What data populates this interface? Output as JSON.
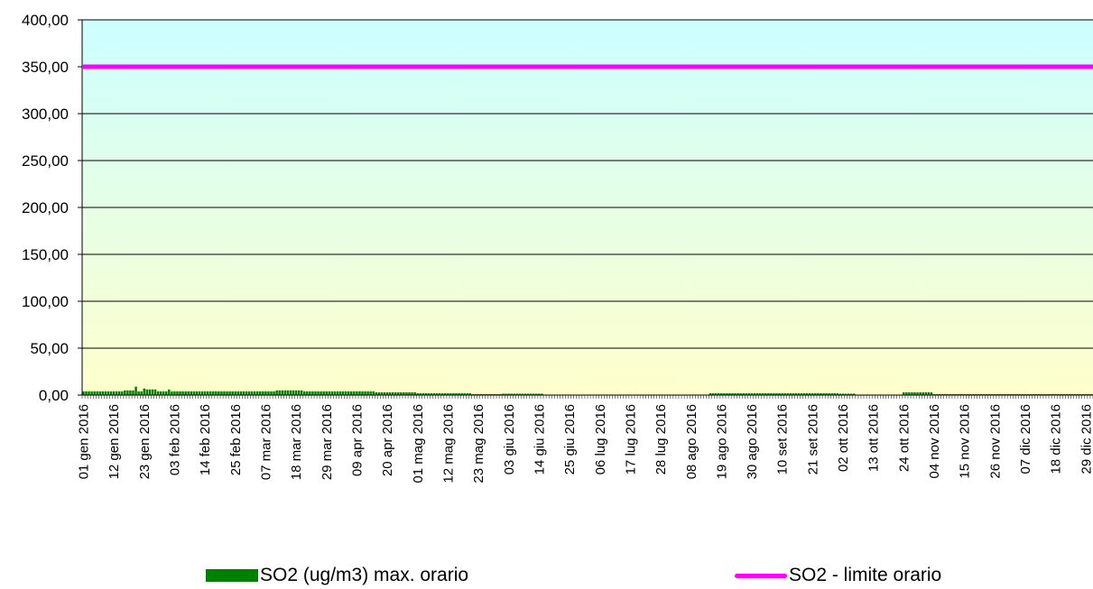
{
  "chart_data": {
    "type": "bar",
    "y_ticks": [
      "0,00",
      "50,00",
      "100,00",
      "150,00",
      "200,00",
      "250,00",
      "300,00",
      "350,00",
      "400,00"
    ],
    "ylim": [
      0,
      400
    ],
    "x_tick_labels": [
      "01 gen 2016",
      "12 gen 2016",
      "23 gen 2016",
      "03 feb 2016",
      "14 feb 2016",
      "25 feb 2016",
      "07 mar 2016",
      "18 mar 2016",
      "29 mar 2016",
      "09 apr 2016",
      "20 apr 2016",
      "01 mag 2016",
      "12 mag 2016",
      "23 mag 2016",
      "03 giu 2016",
      "14 giu 2016",
      "25 giu 2016",
      "06 lug 2016",
      "17 lug 2016",
      "28 lug 2016",
      "08 ago 2016",
      "19 ago 2016",
      "30 ago 2016",
      "10 set 2016",
      "21 set 2016",
      "02 ott 2016",
      "13 ott 2016",
      "24 ott 2016",
      "04 nov 2016",
      "15 nov 2016",
      "26 nov 2016",
      "07 dic 2016",
      "18 dic 2016",
      "29 dic 2016"
    ],
    "series": [
      {
        "name": "SO2 (ug/m3) max. orario",
        "kind": "bar",
        "color": "#008000",
        "segments": [
          {
            "from": "01 gen 2016",
            "to": "15 gen 2016",
            "value": 4
          },
          {
            "from": "16 gen 2016",
            "to": "19 gen 2016",
            "value": 5
          },
          {
            "from": "20 gen 2016",
            "to": "20 gen 2016",
            "value": 9
          },
          {
            "from": "21 gen 2016",
            "to": "22 gen 2016",
            "value": 4
          },
          {
            "from": "23 gen 2016",
            "to": "23 gen 2016",
            "value": 7
          },
          {
            "from": "24 gen 2016",
            "to": "27 gen 2016",
            "value": 6
          },
          {
            "from": "28 gen 2016",
            "to": "31 gen 2016",
            "value": 4
          },
          {
            "from": "01 feb 2016",
            "to": "01 feb 2016",
            "value": 6
          },
          {
            "from": "02 feb 2016",
            "to": "10 mar 2016",
            "value": 4
          },
          {
            "from": "11 mar 2016",
            "to": "20 mar 2016",
            "value": 5
          },
          {
            "from": "21 mar 2016",
            "to": "15 apr 2016",
            "value": 4
          },
          {
            "from": "16 apr 2016",
            "to": "30 apr 2016",
            "value": 3
          },
          {
            "from": "01 mag 2016",
            "to": "20 mag 2016",
            "value": 2
          },
          {
            "from": "21 mag 2016",
            "to": "31 mag 2016",
            "value": 1
          },
          {
            "from": "01 giu 2016",
            "to": "15 giu 2016",
            "value": 1.5
          },
          {
            "from": "16 giu 2016",
            "to": "14 ago 2016",
            "value": 0.5
          },
          {
            "from": "15 ago 2016",
            "to": "30 set 2016",
            "value": 2
          },
          {
            "from": "01 ott 2016",
            "to": "06 ott 2016",
            "value": 1.5
          },
          {
            "from": "07 ott 2016",
            "to": "23 ott 2016",
            "value": 0.5
          },
          {
            "from": "24 ott 2016",
            "to": "03 nov 2016",
            "value": 3
          },
          {
            "from": "04 nov 2016",
            "to": "31 dic 2016",
            "value": 1
          }
        ]
      },
      {
        "name": "SO2 - limite orario",
        "kind": "line",
        "color": "#ff00ff",
        "value": 350
      }
    ],
    "grid": true,
    "legend_position": "bottom",
    "background_gradient": [
      "#ccffff",
      "#ffffcc"
    ]
  }
}
